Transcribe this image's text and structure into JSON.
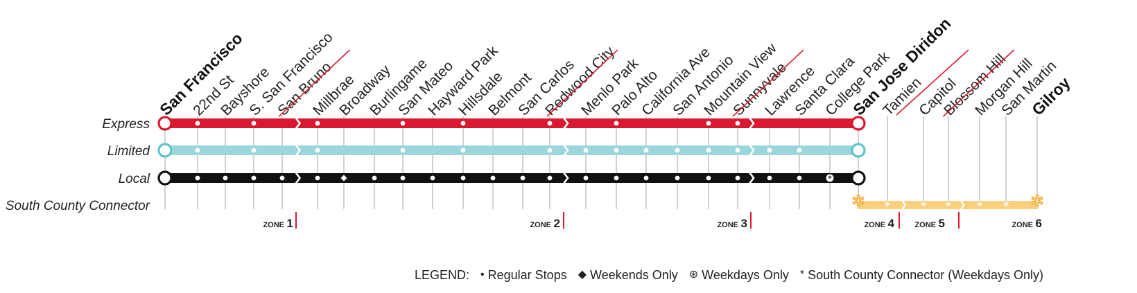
{
  "services": [
    {
      "id": "express",
      "label": "Express",
      "color": "#d8192f"
    },
    {
      "id": "limited",
      "label": "Limited",
      "color": "#9ad7dc"
    },
    {
      "id": "local",
      "label": "Local",
      "color": "#111111"
    },
    {
      "id": "scc",
      "label": "South County Connector",
      "color": "#fccf7e"
    }
  ],
  "stations": [
    {
      "name": "San Francisco",
      "major": true,
      "stops": {
        "express": "terminal",
        "limited": "terminal",
        "local": "terminal"
      }
    },
    {
      "name": "22nd St",
      "stops": {
        "express": "regular",
        "limited": "regular",
        "local": "regular"
      }
    },
    {
      "name": "Bayshore",
      "stops": {
        "local": "regular"
      }
    },
    {
      "name": "S. San Francisco",
      "stops": {
        "express": "regular",
        "limited": "regular",
        "local": "regular"
      }
    },
    {
      "name": "San Bruno",
      "stops": {
        "local": "regular"
      }
    },
    {
      "name": "Millbrae",
      "stops": {
        "express": "regular",
        "limited": "regular",
        "local": "regular"
      }
    },
    {
      "name": "Broadway",
      "stops": {
        "local": "weekends"
      }
    },
    {
      "name": "Burlingame",
      "stops": {
        "local": "regular"
      }
    },
    {
      "name": "San Mateo",
      "stops": {
        "express": "regular",
        "limited": "regular",
        "local": "regular"
      }
    },
    {
      "name": "Hayward Park",
      "stops": {
        "local": "regular"
      }
    },
    {
      "name": "Hillsdale",
      "stops": {
        "express": "regular",
        "limited": "regular",
        "local": "regular"
      }
    },
    {
      "name": "Belmont",
      "stops": {
        "local": "regular"
      }
    },
    {
      "name": "San Carlos",
      "stops": {
        "local": "regular"
      }
    },
    {
      "name": "Redwood City",
      "stops": {
        "express": "regular",
        "limited": "regular",
        "local": "regular"
      }
    },
    {
      "name": "Menlo Park",
      "stops": {
        "limited": "regular",
        "local": "regular"
      }
    },
    {
      "name": "Palo Alto",
      "stops": {
        "express": "regular",
        "limited": "regular",
        "local": "regular"
      }
    },
    {
      "name": "California Ave",
      "stops": {
        "limited": "regular",
        "local": "regular"
      }
    },
    {
      "name": "San Antonio",
      "stops": {
        "limited": "regular",
        "local": "regular"
      }
    },
    {
      "name": "Mountain View",
      "stops": {
        "express": "regular",
        "limited": "regular",
        "local": "regular"
      }
    },
    {
      "name": "Sunnyvale",
      "stops": {
        "express": "regular",
        "limited": "regular",
        "local": "regular"
      }
    },
    {
      "name": "Lawrence",
      "stops": {
        "limited": "regular",
        "local": "regular"
      }
    },
    {
      "name": "Santa Clara",
      "stops": {
        "limited": "regular",
        "local": "regular"
      }
    },
    {
      "name": "College Park",
      "stops": {
        "local": "weekdays"
      }
    },
    {
      "name": "San Jose Diridon",
      "major": true,
      "stops": {
        "express": "terminal",
        "limited": "terminal",
        "local": "terminal",
        "scc": "terminal"
      }
    },
    {
      "name": "Tamien",
      "stops": {
        "scc": "connector"
      }
    },
    {
      "name": "Capitol",
      "stops": {
        "scc": "connector"
      }
    },
    {
      "name": "Blossom Hill",
      "stops": {
        "scc": "connector"
      }
    },
    {
      "name": "Morgan Hill",
      "stops": {
        "scc": "connector"
      }
    },
    {
      "name": "San Martin",
      "stops": {
        "scc": "connector"
      }
    },
    {
      "name": "Gilroy",
      "major": true,
      "stops": {
        "scc": "terminal"
      }
    }
  ],
  "zones": [
    {
      "word": "ZONE",
      "number": "1",
      "after": "San Bruno"
    },
    {
      "word": "ZONE",
      "number": "2",
      "after": "Redwood City"
    },
    {
      "word": "ZONE",
      "number": "3",
      "after": "Sunnyvale"
    },
    {
      "word": "ZONE",
      "number": "4",
      "after": "Tamien"
    },
    {
      "word": "ZONE",
      "number": "5",
      "after": "Blossom Hill"
    },
    {
      "word": "ZONE",
      "number": "6",
      "after": "Gilroy"
    }
  ],
  "zone_color": "#d8192f",
  "legend": {
    "title": "LEGEND:",
    "items": [
      {
        "symbol": "•",
        "icon": "dot-icon",
        "label": "Regular Stops"
      },
      {
        "symbol": "◆",
        "icon": "diamond-icon",
        "label": "Weekends Only"
      },
      {
        "symbol": "⊛",
        "icon": "circled-star-icon",
        "label": "Weekdays Only"
      },
      {
        "symbol": "*",
        "icon": "asterisk-icon",
        "label": "South County Connector (Weekdays Only)"
      }
    ]
  }
}
